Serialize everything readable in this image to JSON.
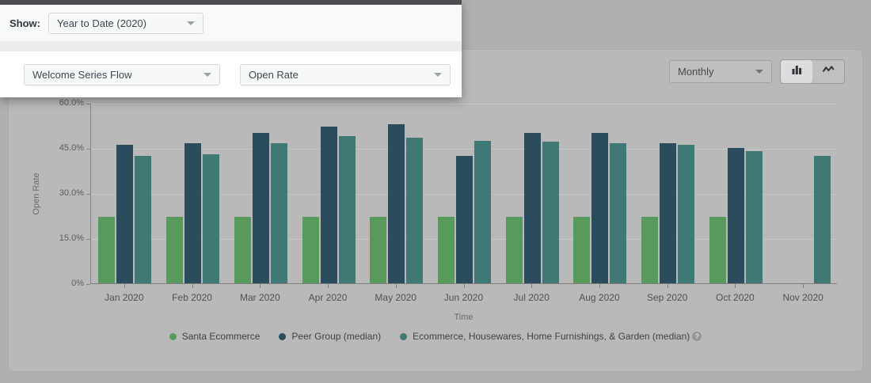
{
  "spotlight": {
    "show_label": "Show:",
    "show_dropdown_value": "Year to Date (2020)",
    "flow_dropdown_value": "Welcome Series Flow",
    "metric_dropdown_value": "Open Rate"
  },
  "toolbar": {
    "interval_dropdown_value": "Monthly"
  },
  "chart_data": {
    "type": "bar",
    "title": "",
    "xlabel": "Time",
    "ylabel": "Open Rate",
    "ylim": [
      0,
      60
    ],
    "yticks": [
      {
        "value": 0,
        "label": "0%"
      },
      {
        "value": 15,
        "label": "15.0%"
      },
      {
        "value": 30,
        "label": "30.0%"
      },
      {
        "value": 45,
        "label": "45.0%"
      },
      {
        "value": 60,
        "label": "60.0%"
      }
    ],
    "categories": [
      "Jan 2020",
      "Feb 2020",
      "Mar 2020",
      "Apr 2020",
      "May 2020",
      "Jun 2020",
      "Jul 2020",
      "Aug 2020",
      "Sep 2020",
      "Oct 2020",
      "Nov 2020"
    ],
    "series": [
      {
        "name": "Santa Ecommerce",
        "color": "#579a5b",
        "values": [
          22,
          22,
          22,
          22,
          22,
          22,
          22,
          22,
          22,
          22,
          null
        ]
      },
      {
        "name": "Peer Group (median)",
        "color": "#2b4c5c",
        "values": [
          46,
          46.5,
          50,
          52,
          53,
          42.5,
          50,
          50,
          46.5,
          45,
          null
        ]
      },
      {
        "name": "Ecommerce, Housewares, Home Furnishings, & Garden (median)",
        "color": "#3f7875",
        "values": [
          42.5,
          43,
          46.5,
          49,
          48.5,
          47.5,
          47,
          46.5,
          46,
          44,
          42.5
        ],
        "help_icon": true
      }
    ],
    "legend_position": "bottom",
    "grid": true,
    "help_glyph": "?"
  },
  "colors": {
    "series_green": "#579a5b",
    "series_dark_teal": "#2b4c5c",
    "series_teal": "#3f7875",
    "dim_background": "#b0b0b0",
    "card_background": "#b9b9b9",
    "spotlight_background": "#ffffff"
  }
}
